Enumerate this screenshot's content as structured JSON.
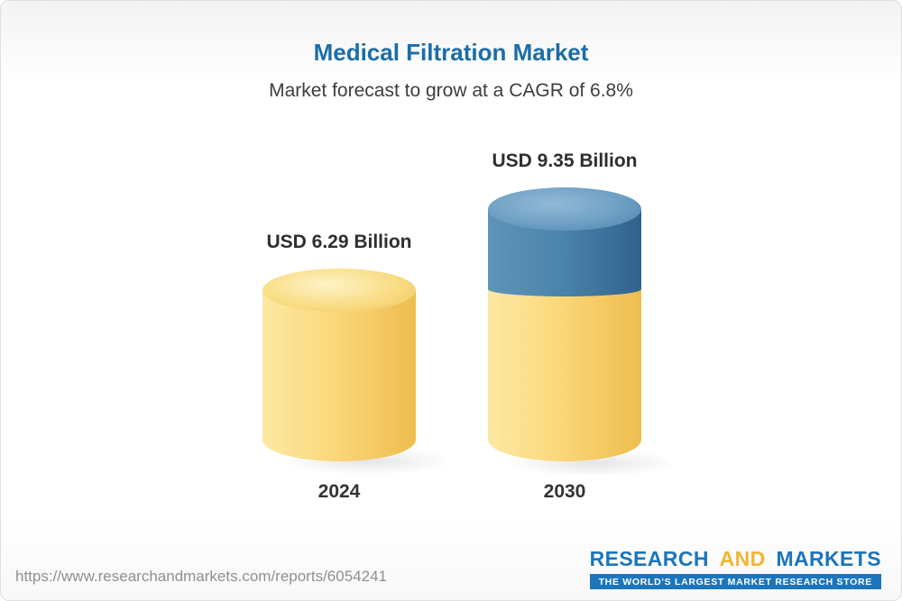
{
  "title": "Medical Filtration Market",
  "subtitle": "Market forecast to grow at a CAGR of 6.8%",
  "chart_data": {
    "type": "bar",
    "style": "3d-cylinder",
    "categories": [
      "2024",
      "2030"
    ],
    "values": [
      6.29,
      9.35
    ],
    "value_labels": [
      "USD 6.29 Billion",
      "USD 9.35 Billion"
    ],
    "unit": "USD Billion",
    "cagr": "6.8%",
    "series_note": "2030 cylinder shows base value in gold with growth segment in blue on top",
    "colors": {
      "base_segment": "#f6cf66",
      "growth_segment": "#4a82aa",
      "title": "#1b6da9",
      "label_text": "#2e2e2e"
    },
    "legend": "none",
    "grid": false
  },
  "footer": {
    "url": "https://www.researchandmarkets.com/reports/6054241",
    "logo": {
      "research": "RESEARCH",
      "and": "AND",
      "markets": "MARKETS",
      "tagline": "THE WORLD'S LARGEST MARKET RESEARCH STORE"
    }
  }
}
